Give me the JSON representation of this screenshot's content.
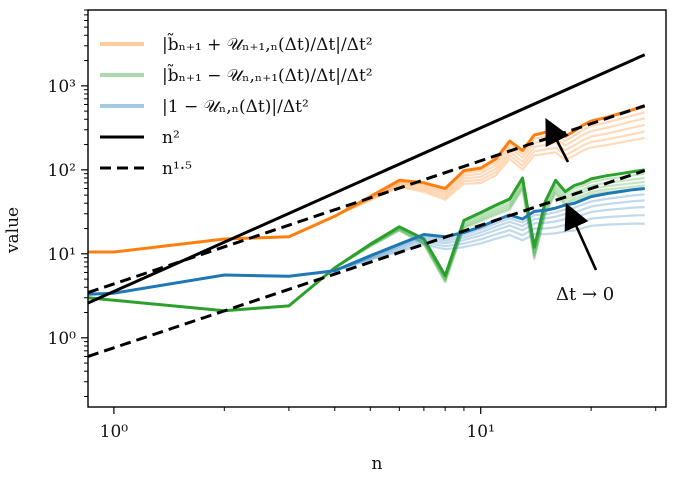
{
  "chart_data": {
    "type": "line",
    "x_scale": "log",
    "y_scale": "log",
    "xlabel": "n",
    "ylabel": "value",
    "xlim": [
      0.85,
      32
    ],
    "ylim": [
      0.15,
      8000
    ],
    "x_ticks": [
      {
        "value": 1,
        "label": "10⁰"
      },
      {
        "value": 10,
        "label": "10¹"
      }
    ],
    "y_ticks": [
      {
        "value": 1,
        "label": "10⁰"
      },
      {
        "value": 10,
        "label": "10¹"
      },
      {
        "value": 100,
        "label": "10²"
      },
      {
        "value": 1000,
        "label": "10³"
      }
    ],
    "legend_position": "top-left",
    "legend": [
      {
        "label": "|b̃ₙ₊₁ + 𝒰ₙ₊₁,ₙ(Δt)/Δt|/Δt²",
        "color": "#ff7f0e",
        "style": "faint"
      },
      {
        "label": "|b̃ₙ₊₁ − 𝒰ₙ,ₙ₊₁(Δt)/Δt|/Δt²",
        "color": "#2ca02c",
        "style": "faint"
      },
      {
        "label": "|1 − 𝒰ₙ,ₙ(Δt)|/Δt²",
        "color": "#1f77b4",
        "style": "faint"
      },
      {
        "label": "n²",
        "color": "#000000",
        "style": "solid"
      },
      {
        "label": "n¹·⁵",
        "color": "#000000",
        "style": "dashed"
      }
    ],
    "annotation": {
      "text": "Δt → 0"
    },
    "series": [
      {
        "color": "#ff7f0e",
        "x": [
          0.85,
          1,
          2,
          3,
          4,
          5,
          6,
          7,
          8,
          9,
          10,
          11,
          12,
          13,
          14,
          15,
          16,
          17,
          18,
          19,
          20,
          22,
          24,
          26,
          28
        ],
        "y": [
          10.5,
          10.5,
          15,
          16,
          28,
          48,
          75,
          70,
          60,
          98,
          105,
          135,
          220,
          170,
          260,
          280,
          300,
          250,
          290,
          340,
          380,
          420,
          470,
          520,
          570
        ],
        "family_count": 6,
        "family_factors_late": [
          1.0,
          0.85,
          0.72,
          0.6,
          0.5,
          0.42
        ]
      },
      {
        "color": "#2ca02c",
        "x": [
          0.85,
          1,
          2,
          3,
          4,
          5,
          6,
          7,
          8,
          9,
          10,
          11,
          12,
          13,
          14,
          15,
          16,
          17,
          18,
          19,
          20,
          22,
          24,
          26,
          28
        ],
        "y": [
          3.0,
          2.8,
          2.1,
          2.4,
          6.8,
          13,
          21,
          15,
          5.5,
          25,
          31,
          38,
          45,
          80,
          12,
          42,
          75,
          55,
          65,
          70,
          78,
          85,
          90,
          95,
          100
        ],
        "family_count": 6,
        "family_factors_late": [
          1.0,
          0.9,
          0.8,
          0.72,
          0.65,
          0.6
        ]
      },
      {
        "color": "#1f77b4",
        "x": [
          0.85,
          1,
          2,
          3,
          4,
          5,
          6,
          7,
          8,
          9,
          10,
          11,
          12,
          13,
          14,
          15,
          16,
          17,
          18,
          19,
          20,
          22,
          24,
          26,
          28
        ],
        "y": [
          3.3,
          3.4,
          5.6,
          5.4,
          6.3,
          9.5,
          13,
          17,
          16,
          18,
          21,
          25,
          29,
          26,
          32,
          33,
          35,
          38,
          40,
          44,
          48,
          52,
          55,
          58,
          60
        ],
        "family_count": 6,
        "family_factors_late": [
          1.0,
          0.85,
          0.72,
          0.6,
          0.48,
          0.38
        ]
      },
      {
        "color": "#000000",
        "x": [
          0.85,
          28
        ],
        "y": [
          2.6,
          2350
        ],
        "dash": "solid"
      },
      {
        "color": "#000000",
        "x": [
          0.85,
          28
        ],
        "y": [
          0.6,
          98
        ],
        "dash": "dashed"
      },
      {
        "color": "#000000",
        "x": [
          0.85,
          28
        ],
        "y": [
          3.45,
          580
        ],
        "dash": "dashed"
      }
    ]
  }
}
